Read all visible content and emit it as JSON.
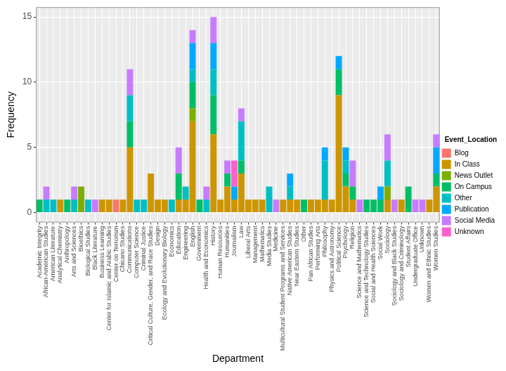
{
  "chart_data": {
    "type": "bar",
    "x_label": "Department",
    "y_label": "Frequency",
    "legend_title": "Event_Location",
    "legend": "right",
    "stacked": true,
    "grid": true,
    "ylim": [
      -0.75,
      15.75
    ],
    "yticks": [
      0,
      5,
      10,
      15
    ],
    "categories": [
      "Academic Integrity",
      "African-American Studies",
      "American Literature",
      "Analytical Chemistry",
      "Anthropology",
      "Arts and Sciences",
      "Bioethics",
      "Biological Studies",
      "Black Literature",
      "Business Learning",
      "Center for Islamic and Arabic Studies",
      "Center on Terrorism",
      "Chicano Studies",
      "Communications",
      "Computer Science",
      "Criminal Justice",
      "Critical Culture, Gender, and Race Studies",
      "Design",
      "Ecology and Evolutionary Biology",
      "Economics",
      "Education",
      "Engineering",
      "English",
      "Government",
      "Health and Economics",
      "History",
      "Human Resources",
      "Humanities",
      "Journalism",
      "Law",
      "Liberal Arts",
      "Management",
      "Mathematics",
      "Media Studies",
      "Medicine",
      "Multicultural Student Programs and Services",
      "Native American Studies",
      "Near Eastern Studies",
      "Other",
      "Pan African Studies",
      "Performing Arts",
      "Philosophy",
      "Physics and Astronomy",
      "Political Science",
      "Psychology",
      "Religion",
      "Science and Mathematics",
      "Science and Technology Studies",
      "Social and Health Sciences",
      "Social Work",
      "Sociology",
      "Sociology and Black Studies",
      "Sociology and Criminology",
      "Student Affairs",
      "Undergraduate Office",
      "Unknown",
      "Women and Ethnic Studies",
      "Women Studies"
    ],
    "series": [
      {
        "name": "Blog",
        "color": "#F8766D",
        "values": [
          0,
          0,
          0,
          0,
          0,
          0,
          0,
          0,
          0,
          0,
          0,
          1,
          0,
          0,
          0,
          0,
          0,
          0,
          0,
          0,
          0,
          0,
          0,
          0,
          0,
          0,
          0,
          0,
          0,
          0,
          0,
          0,
          0,
          0,
          0,
          0,
          0,
          0,
          0,
          0,
          0,
          0,
          0,
          0,
          0,
          0,
          0,
          0,
          0,
          0,
          0,
          0,
          0,
          0,
          0,
          0,
          0,
          0
        ]
      },
      {
        "name": "In Class",
        "color": "#CD9600",
        "values": [
          0,
          0,
          0,
          1,
          0,
          0,
          0,
          0,
          0,
          1,
          1,
          0,
          1,
          5,
          0,
          0,
          3,
          1,
          1,
          0,
          1,
          1,
          7,
          0,
          0,
          6,
          1,
          2,
          1,
          3,
          1,
          1,
          1,
          0,
          0,
          1,
          1,
          1,
          0,
          1,
          1,
          1,
          1,
          9,
          2,
          1,
          0,
          0,
          0,
          0,
          1,
          0,
          1,
          0,
          0,
          0,
          1,
          2
        ]
      },
      {
        "name": "News Outlet",
        "color": "#7CAE00",
        "values": [
          0,
          0,
          0,
          0,
          0,
          0,
          2,
          0,
          0,
          0,
          0,
          0,
          0,
          0,
          0,
          0,
          0,
          0,
          0,
          0,
          0,
          0,
          1,
          0,
          0,
          0,
          0,
          0,
          0,
          0,
          0,
          0,
          0,
          0,
          0,
          0,
          0,
          0,
          0,
          0,
          0,
          0,
          0,
          0,
          0,
          0,
          0,
          0,
          0,
          0,
          1,
          0,
          0,
          0,
          0,
          0,
          0,
          0
        ]
      },
      {
        "name": "On Campus",
        "color": "#00BE67",
        "values": [
          1,
          0,
          0,
          0,
          1,
          0,
          0,
          0,
          0,
          0,
          0,
          0,
          0,
          2,
          0,
          0,
          0,
          0,
          0,
          0,
          2,
          0,
          2,
          1,
          0,
          3,
          0,
          1,
          0,
          1,
          0,
          0,
          0,
          0,
          0,
          0,
          0,
          0,
          1,
          0,
          0,
          0,
          0,
          2,
          1,
          1,
          0,
          1,
          1,
          1,
          0,
          0,
          0,
          2,
          0,
          0,
          0,
          1
        ]
      },
      {
        "name": "Other",
        "color": "#00BFC4",
        "values": [
          0,
          1,
          1,
          0,
          0,
          1,
          0,
          1,
          0,
          0,
          0,
          0,
          0,
          2,
          1,
          1,
          0,
          0,
          0,
          1,
          0,
          1,
          1,
          0,
          1,
          2,
          0,
          0,
          0,
          3,
          0,
          0,
          0,
          2,
          0,
          0,
          1,
          0,
          0,
          0,
          0,
          3,
          0,
          0,
          1,
          0,
          0,
          0,
          0,
          0,
          2,
          0,
          0,
          0,
          0,
          0,
          0,
          0
        ]
      },
      {
        "name": "Publication",
        "color": "#00A9FF",
        "values": [
          0,
          0,
          0,
          0,
          0,
          0,
          0,
          0,
          0,
          0,
          0,
          0,
          0,
          0,
          0,
          0,
          0,
          0,
          0,
          0,
          0,
          0,
          2,
          0,
          0,
          2,
          0,
          0,
          1,
          0,
          0,
          0,
          0,
          0,
          0,
          0,
          1,
          0,
          0,
          0,
          0,
          1,
          0,
          1,
          1,
          0,
          0,
          0,
          0,
          1,
          0,
          0,
          0,
          0,
          0,
          0,
          0,
          2
        ]
      },
      {
        "name": "Social Media",
        "color": "#C77CFF",
        "values": [
          0,
          1,
          0,
          0,
          0,
          1,
          0,
          0,
          1,
          0,
          0,
          0,
          0,
          2,
          0,
          0,
          0,
          0,
          0,
          0,
          2,
          0,
          1,
          0,
          1,
          2,
          0,
          1,
          0,
          1,
          0,
          0,
          0,
          0,
          1,
          0,
          0,
          0,
          0,
          0,
          0,
          0,
          0,
          0,
          0,
          2,
          1,
          0,
          0,
          0,
          2,
          1,
          0,
          0,
          1,
          1,
          0,
          1
        ]
      },
      {
        "name": "Unknown",
        "color": "#FF61CC",
        "values": [
          0,
          0,
          0,
          0,
          0,
          0,
          0,
          0,
          0,
          0,
          0,
          0,
          0,
          0,
          0,
          0,
          0,
          0,
          0,
          0,
          0,
          0,
          0,
          0,
          0,
          0,
          0,
          0,
          2,
          0,
          0,
          0,
          0,
          0,
          0,
          0,
          0,
          0,
          0,
          0,
          0,
          0,
          0,
          0,
          0,
          0,
          0,
          0,
          0,
          0,
          0,
          0,
          0,
          0,
          0,
          0,
          0,
          0
        ]
      }
    ]
  }
}
